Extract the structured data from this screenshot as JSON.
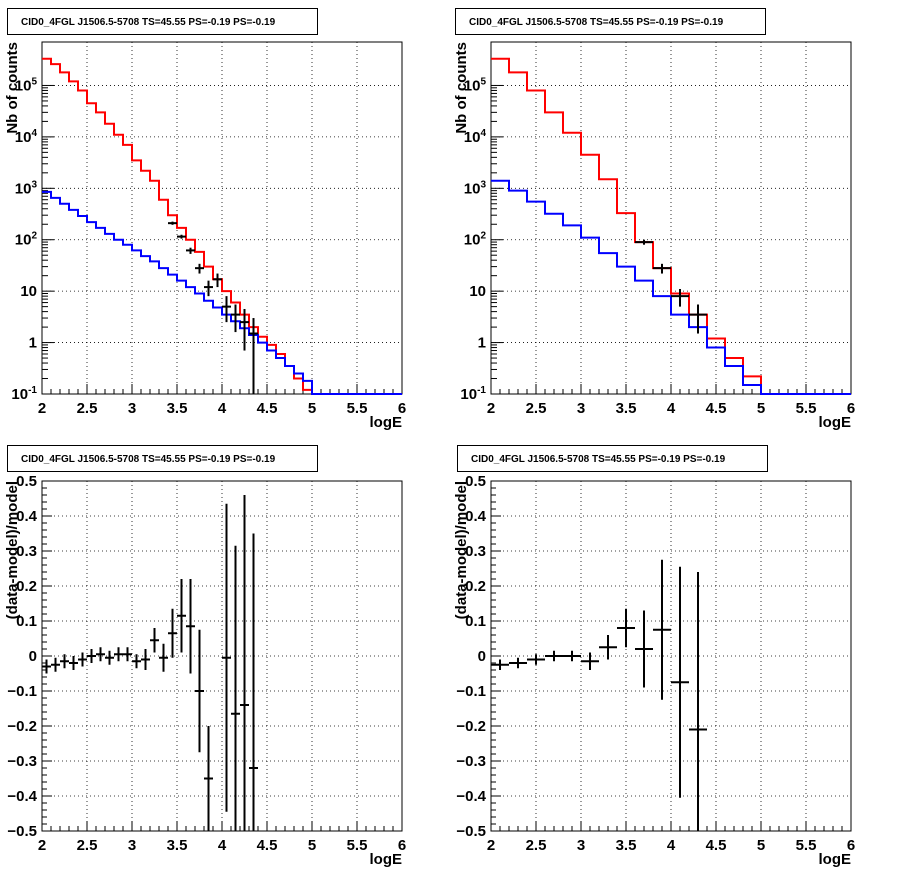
{
  "chart_data": [
    {
      "type": "line",
      "title": "CID0_4FGL J1506.5-5708 TS=45.55 PS=-0.19 PS=-0.19",
      "xlabel": "logE",
      "ylabel": "Nb of counts",
      "xlim": [
        2,
        6
      ],
      "ylim": [
        0.1,
        700000
      ],
      "ylog": true,
      "x_ticks": [
        "2",
        "2.5",
        "3",
        "3.5",
        "4",
        "4.5",
        "5",
        "5.5",
        "6"
      ],
      "y_ticks": [
        "10^-1",
        "1",
        "10",
        "10^2",
        "10^3",
        "10^4",
        "10^5"
      ],
      "grid": true,
      "bin_edges": [
        2,
        2.1,
        2.2,
        2.3,
        2.4,
        2.5,
        2.6,
        2.7,
        2.8,
        2.9,
        3,
        3.1,
        3.2,
        3.3,
        3.4,
        3.5,
        3.6,
        3.7,
        3.8,
        3.9,
        4,
        4.1,
        4.2,
        4.3,
        4.4,
        4.5,
        4.6,
        4.7,
        4.8,
        4.9,
        5,
        5.1,
        5.2,
        5.3,
        5.4,
        5.5,
        5.6,
        5.7,
        5.8,
        5.9,
        6
      ],
      "series": [
        {
          "color": "#ff0000",
          "style": "step",
          "values": [
            330000,
            260000,
            180000,
            120000,
            80000,
            45000,
            30000,
            18000,
            11000,
            7000,
            3500,
            2200,
            1400,
            600,
            300,
            170,
            100,
            58,
            30,
            17,
            10,
            6,
            3.5,
            2,
            1.3,
            0.9,
            0.6,
            0.35,
            0.2,
            0.12,
            0.1,
            0.1,
            0.1,
            0.1,
            0.1,
            0.1,
            0.1,
            0.1,
            0.1,
            0.1
          ]
        },
        {
          "color": "#0000ff",
          "style": "step",
          "values": [
            850,
            650,
            500,
            380,
            290,
            220,
            170,
            130,
            100,
            80,
            62,
            48,
            38,
            28,
            21,
            16,
            12,
            9,
            6.5,
            4.8,
            3.5,
            2.6,
            1.9,
            1.4,
            1,
            0.7,
            0.5,
            0.35,
            0.25,
            0.18,
            0.1,
            0.1,
            0.1,
            0.1,
            0.1,
            0.1,
            0.1,
            0.1,
            0.1,
            0.1
          ]
        },
        {
          "color": "#000000",
          "style": "errorbar",
          "x": [
            3.45,
            3.55,
            3.65,
            3.75,
            3.85,
            3.95,
            4.05,
            4.15,
            4.25,
            4.35
          ],
          "values": [
            210,
            115,
            62,
            28,
            12,
            17,
            5,
            3.5,
            2.5,
            1.5
          ],
          "err_low": [
            195,
            105,
            53,
            22,
            8,
            12,
            2.5,
            1.6,
            0.7,
            0.1
          ],
          "err_high": [
            225,
            125,
            70,
            34,
            16,
            22,
            8,
            5.5,
            4.5,
            3
          ]
        }
      ]
    },
    {
      "type": "line",
      "title": "CID0_4FGL J1506.5-5708 TS=45.55 PS=-0.19 PS=-0.19",
      "xlabel": "logE",
      "ylabel": "Nb of counts",
      "xlim": [
        2,
        6
      ],
      "ylim": [
        0.1,
        700000
      ],
      "ylog": true,
      "x_ticks": [
        "2",
        "2.5",
        "3",
        "3.5",
        "4",
        "4.5",
        "5",
        "5.5",
        "6"
      ],
      "y_ticks": [
        "10^-1",
        "1",
        "10",
        "10^2",
        "10^3",
        "10^4",
        "10^5"
      ],
      "grid": true,
      "bin_edges": [
        2,
        2.2,
        2.4,
        2.6,
        2.8,
        3,
        3.2,
        3.4,
        3.6,
        3.8,
        4,
        4.2,
        4.4,
        4.6,
        4.8,
        5,
        5.2,
        5.4,
        5.6,
        5.8,
        6
      ],
      "series": [
        {
          "color": "#ff0000",
          "style": "step",
          "values": [
            330000,
            180000,
            80000,
            30000,
            12000,
            4500,
            1500,
            330,
            90,
            28,
            9,
            3.5,
            1.2,
            0.5,
            0.22,
            0.1,
            0.1,
            0.1,
            0.1,
            0.1
          ]
        },
        {
          "color": "#0000ff",
          "style": "step",
          "values": [
            1400,
            900,
            550,
            320,
            190,
            110,
            55,
            30,
            16,
            8,
            3.5,
            2,
            0.8,
            0.35,
            0.15,
            0.1,
            0.1,
            0.1,
            0.1,
            0.1
          ]
        },
        {
          "color": "#000000",
          "style": "errorbar",
          "x": [
            3.7,
            3.9,
            4.1,
            4.3
          ],
          "values": [
            90,
            28,
            8,
            3.5
          ],
          "err_low": [
            80,
            22,
            5,
            1.5
          ],
          "err_high": [
            100,
            34,
            11,
            5.5
          ]
        }
      ]
    },
    {
      "type": "scatter",
      "title": "CID0_4FGL J1506.5-5708 TS=45.55 PS=-0.19 PS=-0.19",
      "xlabel": "logE",
      "ylabel": "(data-model)/model",
      "xlim": [
        2,
        6
      ],
      "ylim": [
        -0.5,
        0.5
      ],
      "x_ticks": [
        "2",
        "2.5",
        "3",
        "3.5",
        "4",
        "4.5",
        "5",
        "5.5",
        "6"
      ],
      "y_ticks": [
        "−0.5",
        "−0.4",
        "−0.3",
        "−0.2",
        "−0.1",
        "0",
        "0.1",
        "0.2",
        "0.3",
        "0.4",
        "0.5"
      ],
      "grid": true,
      "bin_width": 0.1,
      "series": [
        {
          "color": "#000000",
          "style": "errorbar",
          "x": [
            2.05,
            2.15,
            2.25,
            2.35,
            2.45,
            2.55,
            2.65,
            2.75,
            2.85,
            2.95,
            3.05,
            3.15,
            3.25,
            3.35,
            3.45,
            3.55,
            3.65,
            3.75,
            3.85,
            4.05,
            4.15,
            4.25,
            4.35
          ],
          "values": [
            -0.03,
            -0.025,
            -0.015,
            -0.02,
            -0.01,
            0,
            0.005,
            -0.005,
            0.005,
            0.005,
            -0.015,
            -0.01,
            0.045,
            -0.005,
            0.065,
            0.115,
            0.085,
            -0.1,
            -0.35,
            -0.005,
            -0.165,
            -0.14,
            -0.32
          ],
          "err": [
            0.02,
            0.02,
            0.02,
            0.02,
            0.02,
            0.02,
            0.02,
            0.02,
            0.02,
            0.02,
            0.02,
            0.03,
            0.035,
            0.04,
            0.07,
            0.105,
            0.135,
            0.175,
            0.15,
            0.44,
            0.48,
            0.6,
            0.67
          ]
        }
      ]
    },
    {
      "type": "scatter",
      "title": "CID0_4FGL J1506.5-5708 TS=45.55 PS=-0.19 PS=-0.19",
      "xlabel": "logE",
      "ylabel": "(data-model)/model",
      "xlim": [
        2,
        6
      ],
      "ylim": [
        -0.5,
        0.5
      ],
      "x_ticks": [
        "2",
        "2.5",
        "3",
        "3.5",
        "4",
        "4.5",
        "5",
        "5.5",
        "6"
      ],
      "y_ticks": [
        "−0.5",
        "−0.4",
        "−0.3",
        "−0.2",
        "−0.1",
        "0",
        "0.1",
        "0.2",
        "0.3",
        "0.4",
        "0.5"
      ],
      "grid": true,
      "bin_width": 0.2,
      "series": [
        {
          "color": "#000000",
          "style": "errorbar",
          "x": [
            2.1,
            2.3,
            2.5,
            2.7,
            2.9,
            3.1,
            3.3,
            3.5,
            3.7,
            3.9,
            4.1,
            4.3
          ],
          "values": [
            -0.025,
            -0.02,
            -0.01,
            0,
            0,
            -0.015,
            0.025,
            0.08,
            0.02,
            0.075,
            -0.075,
            -0.21
          ],
          "err": [
            0.015,
            0.015,
            0.015,
            0.015,
            0.015,
            0.025,
            0.035,
            0.055,
            0.11,
            0.2,
            0.33,
            0.45
          ]
        }
      ]
    }
  ]
}
